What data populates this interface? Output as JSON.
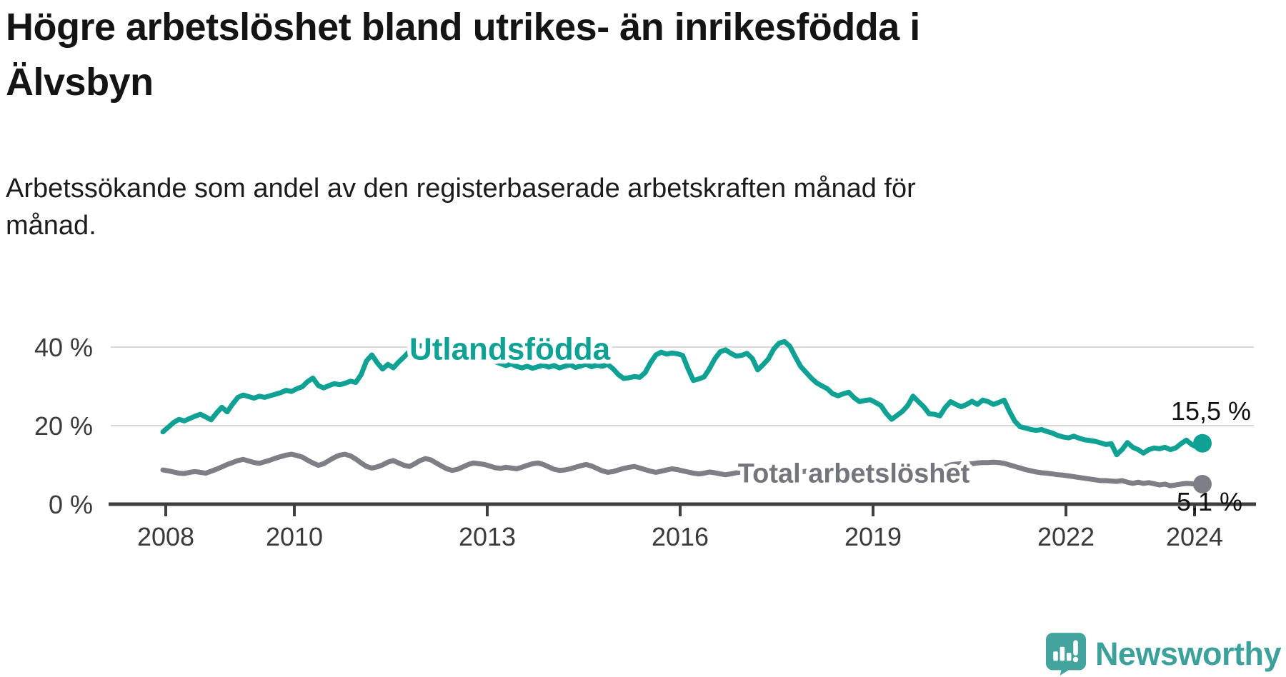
{
  "title_line1": "Högre arbetslöshet bland utrikes- än inrikesfödda i",
  "title_line2": "Älvsbyn",
  "subtitle_line1": "Arbetssökande som andel av den registerbaserade arbetskraften månad för",
  "subtitle_line2": "månad.",
  "footer": {
    "brand": "Newsworthy",
    "logo_icon": "speech-bubble-bar-chart-icon"
  },
  "colors": {
    "series_foreign": "#0fa294",
    "series_total": "#7e7e86",
    "total_label": "#74747c",
    "axis": "#3f3f3f",
    "gridline": "#d8d8d8",
    "tick_text": "#3a3a3a",
    "end_label_text": "#111111",
    "logo_teal": "#43a49d"
  },
  "chart_data": {
    "type": "line",
    "x_unit": "month",
    "x_start": "2008-01",
    "x_end": "2024-03",
    "x_tick_years": [
      2008,
      2010,
      2013,
      2016,
      2019,
      2022,
      2024
    ],
    "y_ticks": [
      0,
      20,
      40
    ],
    "y_tick_suffix": " %",
    "ylim": [
      0,
      44
    ],
    "grid": "horizontal",
    "legend_position": "inline-labels",
    "series": [
      {
        "name": "Utlandsfödda",
        "end_label": "15,5 %",
        "end_value": 15.5,
        "color": "#0fa294",
        "label_x_year": 2013.35,
        "label_y_pct": 39.6,
        "label_font": 44,
        "end_label_dx": 12,
        "end_label_dy": -33,
        "values": [
          18.4,
          19.6,
          20.8,
          21.6,
          21.2,
          21.8,
          22.4,
          22.9,
          22.2,
          21.5,
          23.2,
          24.7,
          23.5,
          25.5,
          27.2,
          27.8,
          27.4,
          27.0,
          27.5,
          27.2,
          27.6,
          28.0,
          28.4,
          29.0,
          28.7,
          29.4,
          29.9,
          31.2,
          32.1,
          30.2,
          29.6,
          30.2,
          30.7,
          30.4,
          30.8,
          31.3,
          31.0,
          33.0,
          36.5,
          38.0,
          36.0,
          34.4,
          35.6,
          34.7,
          36.2,
          37.5,
          38.9,
          40.7,
          40.3,
          40.6,
          40.0,
          39.3,
          38.6,
          38.0,
          38.3,
          37.7,
          37.2,
          37.5,
          36.9,
          37.2,
          36.6,
          36.9,
          36.3,
          35.8,
          35.3,
          35.7,
          35.1,
          34.7,
          35.1,
          34.6,
          35.0,
          35.4,
          34.9,
          35.3,
          34.7,
          35.1,
          35.5,
          34.8,
          35.2,
          35.6,
          35.0,
          35.4,
          35.1,
          35.6,
          34.5,
          33.0,
          32.0,
          32.2,
          32.5,
          32.3,
          33.5,
          36.0,
          38.0,
          38.7,
          38.2,
          38.5,
          38.3,
          37.9,
          34.5,
          31.5,
          31.9,
          32.4,
          34.5,
          37.0,
          38.8,
          39.3,
          38.4,
          37.7,
          37.9,
          38.4,
          37.1,
          34.2,
          35.5,
          37.0,
          39.5,
          41.0,
          41.4,
          40.2,
          37.6,
          35.1,
          33.6,
          32.1,
          30.9,
          30.1,
          29.4,
          28.1,
          27.6,
          28.1,
          28.5,
          27.1,
          26.1,
          26.4,
          26.6,
          25.9,
          25.1,
          23.1,
          21.6,
          22.6,
          23.6,
          25.1,
          27.5,
          26.1,
          24.8,
          23.0,
          22.9,
          22.5,
          24.6,
          26.1,
          25.4,
          24.8,
          25.4,
          26.2,
          25.4,
          26.5,
          26.1,
          25.4,
          25.9,
          26.5,
          23.6,
          21.1,
          19.7,
          19.4,
          19.0,
          18.8,
          19.0,
          18.5,
          18.1,
          17.5,
          17.1,
          16.9,
          17.3,
          16.8,
          16.4,
          16.2,
          16.0,
          15.6,
          15.2,
          15.4,
          12.6,
          13.9,
          15.7,
          14.5,
          13.9,
          13.0,
          13.9,
          14.3,
          14.1,
          14.5,
          13.9,
          14.3,
          15.4,
          16.3,
          15.2,
          14.5,
          15.5
        ]
      },
      {
        "name": "Total arbetslöshet",
        "end_label": "5,1 %",
        "end_value": 5.1,
        "color": "#7e7e86",
        "label_x_year": 2018.7,
        "label_y_pct": 8.0,
        "label_font": 38,
        "end_label_dx": 10,
        "end_label_dy": 37,
        "values": [
          8.7,
          8.5,
          8.2,
          7.9,
          7.8,
          8.1,
          8.3,
          8.1,
          7.9,
          8.4,
          8.9,
          9.5,
          10.1,
          10.6,
          11.1,
          11.4,
          11.0,
          10.6,
          10.4,
          10.8,
          11.2,
          11.7,
          12.1,
          12.5,
          12.7,
          12.4,
          12.0,
          11.2,
          10.5,
          9.9,
          10.3,
          11.1,
          11.9,
          12.5,
          12.7,
          12.3,
          11.5,
          10.5,
          9.6,
          9.2,
          9.5,
          10.0,
          10.7,
          11.1,
          10.5,
          9.9,
          9.6,
          10.3,
          11.1,
          11.6,
          11.3,
          10.5,
          9.7,
          9.0,
          8.6,
          8.9,
          9.5,
          10.1,
          10.5,
          10.3,
          10.1,
          9.7,
          9.3,
          9.1,
          9.4,
          9.2,
          9.0,
          9.4,
          9.9,
          10.3,
          10.5,
          10.1,
          9.5,
          8.9,
          8.6,
          8.7,
          9.0,
          9.4,
          9.8,
          10.1,
          9.7,
          9.1,
          8.5,
          8.1,
          8.3,
          8.7,
          9.1,
          9.4,
          9.6,
          9.2,
          8.8,
          8.4,
          8.1,
          8.4,
          8.7,
          9.0,
          8.8,
          8.5,
          8.2,
          7.9,
          7.7,
          7.9,
          8.2,
          8.0,
          7.7,
          7.5,
          7.7,
          8.0,
          8.2,
          8.4,
          8.1,
          7.8,
          7.6,
          7.8,
          8.1,
          8.3,
          8.0,
          7.7,
          7.9,
          8.2,
          8.4,
          8.1,
          7.8,
          7.5,
          7.3,
          7.1,
          7.3,
          7.6,
          7.4,
          7.1,
          6.9,
          7.1,
          7.3,
          7.5,
          7.2,
          6.9,
          6.7,
          6.9,
          7.2,
          7.4,
          7.7,
          7.9,
          8.1,
          8.3,
          8.6,
          8.9,
          9.5,
          10.0,
          10.2,
          10.3,
          10.1,
          10.3,
          10.5,
          10.6,
          10.6,
          10.7,
          10.6,
          10.4,
          10.0,
          9.6,
          9.2,
          8.8,
          8.5,
          8.2,
          8.0,
          7.9,
          7.7,
          7.5,
          7.4,
          7.2,
          7.0,
          6.8,
          6.6,
          6.4,
          6.2,
          6.0,
          6.0,
          5.9,
          5.8,
          6.0,
          5.6,
          5.3,
          5.6,
          5.3,
          5.5,
          5.2,
          4.9,
          5.1,
          4.7,
          4.9,
          5.1,
          5.3,
          5.2,
          5.0,
          5.1
        ]
      }
    ]
  }
}
